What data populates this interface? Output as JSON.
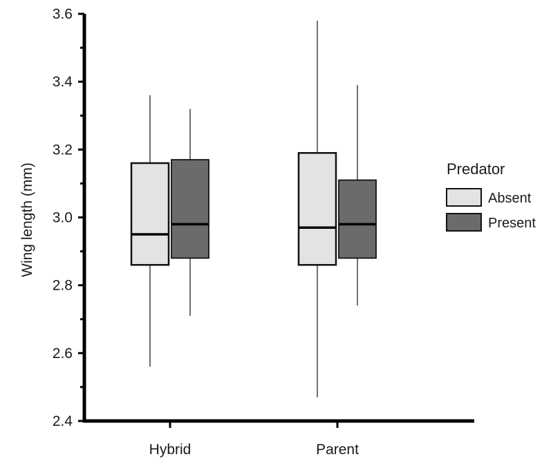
{
  "chart_data": {
    "type": "box",
    "title": "",
    "xlabel": "",
    "ylabel": "Wing length (mm)",
    "categories": [
      "Hybrid",
      "Parent"
    ],
    "ylim": [
      2.4,
      3.6
    ],
    "yticks": [
      "2.4",
      "2.6",
      "2.8",
      "3.0",
      "3.2",
      "3.4",
      "3.6"
    ],
    "ytick_values": [
      2.4,
      2.6,
      2.8,
      3.0,
      3.2,
      3.4,
      3.6
    ],
    "grid": false,
    "legend": {
      "title": "Predator",
      "position": "right",
      "entries": [
        "Absent",
        "Present"
      ]
    },
    "series": [
      {
        "name": "Absent",
        "color": "#e3e3e3",
        "boxes": [
          {
            "category": "Hybrid",
            "min": 2.56,
            "q1": 2.86,
            "median": 2.95,
            "q3": 3.16,
            "max": 3.36
          },
          {
            "category": "Parent",
            "min": 2.47,
            "q1": 2.86,
            "median": 2.97,
            "q3": 3.19,
            "max": 3.58
          }
        ]
      },
      {
        "name": "Present",
        "color": "#6b6b6b",
        "boxes": [
          {
            "category": "Hybrid",
            "min": 2.71,
            "q1": 2.88,
            "median": 2.98,
            "q3": 3.17,
            "max": 3.32
          },
          {
            "category": "Parent",
            "min": 2.74,
            "q1": 2.88,
            "median": 2.98,
            "q3": 3.11,
            "max": 3.39
          }
        ]
      }
    ]
  }
}
